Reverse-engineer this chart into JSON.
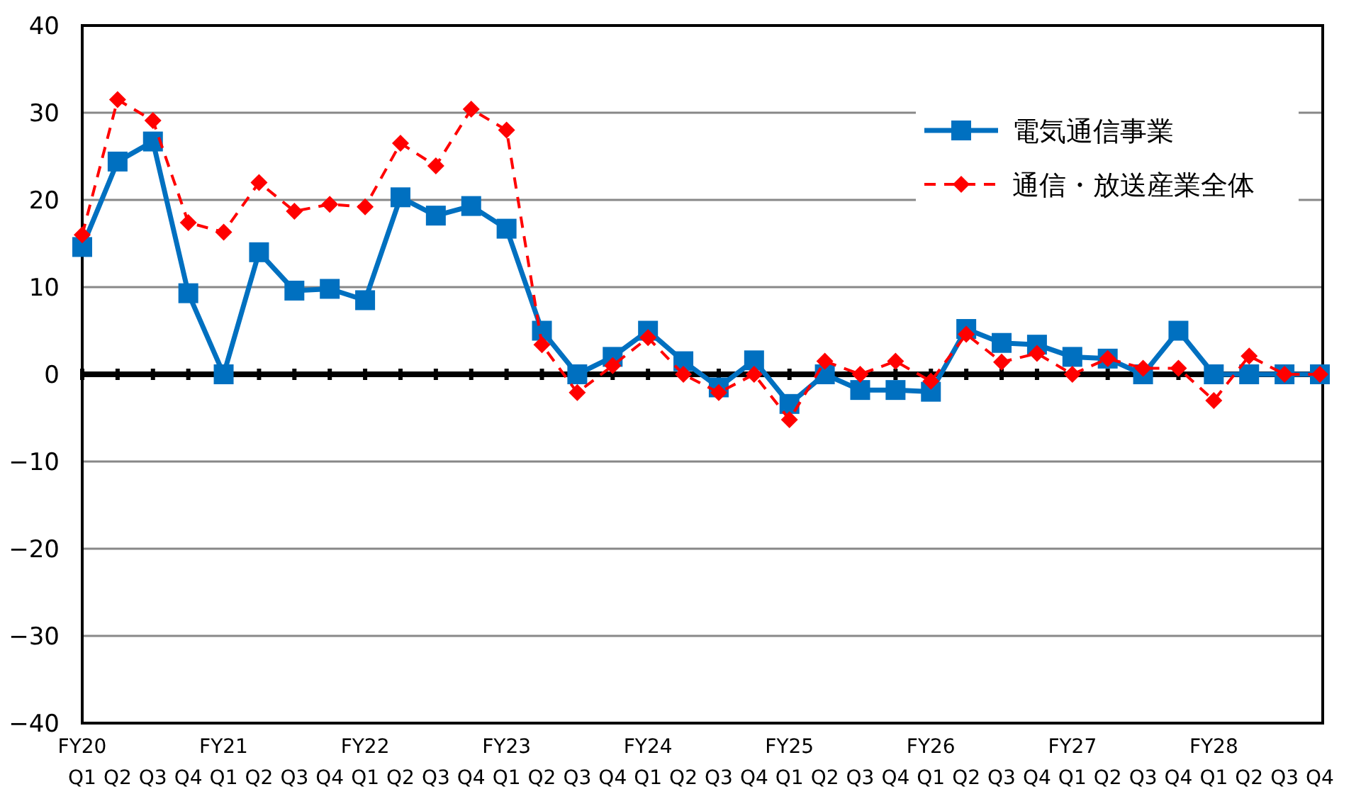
{
  "chart_data": {
    "type": "line",
    "categories": [
      "FY20\nQ1",
      "Q2",
      "Q3",
      "Q4",
      "FY21\nQ1",
      "Q2",
      "Q3",
      "Q4",
      "FY22\nQ1",
      "Q2",
      "Q3",
      "Q4",
      "FY23\nQ1",
      "Q2",
      "Q3",
      "Q4",
      "FY24\nQ1",
      "Q2",
      "Q3",
      "Q4",
      "FY25\nQ1",
      "Q2",
      "Q3",
      "Q4",
      "FY26\nQ1",
      "Q2",
      "Q3",
      "Q4",
      "FY27\nQ1",
      "Q2",
      "Q3",
      "Q4",
      "FY28\nQ1",
      "Q2",
      "Q3",
      "Q4"
    ],
    "series": [
      {
        "name": "電気通信事業",
        "color": "#0070c0",
        "marker": "square",
        "line_style": "solid",
        "values": [
          14.6,
          24.4,
          26.7,
          9.3,
          0,
          14.0,
          9.6,
          9.8,
          8.5,
          20.3,
          18.2,
          19.3,
          16.7,
          5.0,
          0,
          2.0,
          5.0,
          1.5,
          -1.5,
          1.6,
          -3.4,
          0,
          -1.8,
          -1.8,
          -2.0,
          5.2,
          3.6,
          3.4,
          2.0,
          1.8,
          0,
          5.0,
          0,
          0,
          0,
          0
        ]
      },
      {
        "name": "通信・放送産業全体",
        "color": "#ff0000",
        "marker": "diamond",
        "line_style": "dashed",
        "values": [
          16.0,
          31.5,
          29.1,
          17.4,
          16.3,
          22.0,
          18.7,
          19.5,
          19.2,
          26.5,
          23.9,
          30.4,
          28.0,
          3.4,
          -2.1,
          1.0,
          4.2,
          0,
          -2.1,
          0,
          -5.2,
          1.5,
          0,
          1.5,
          -0.8,
          4.6,
          1.4,
          2.4,
          0,
          1.8,
          0.7,
          0.7,
          -3.0,
          2.1,
          0,
          0
        ]
      }
    ],
    "ylim": [
      -40,
      40
    ],
    "yticks": [
      {
        "value": -40,
        "label": "−40"
      },
      {
        "value": -30,
        "label": "−30"
      },
      {
        "value": -20,
        "label": "−20"
      },
      {
        "value": -10,
        "label": "−10"
      },
      0,
      10,
      20,
      30,
      40
    ],
    "grid": "y",
    "legend": "top right"
  }
}
